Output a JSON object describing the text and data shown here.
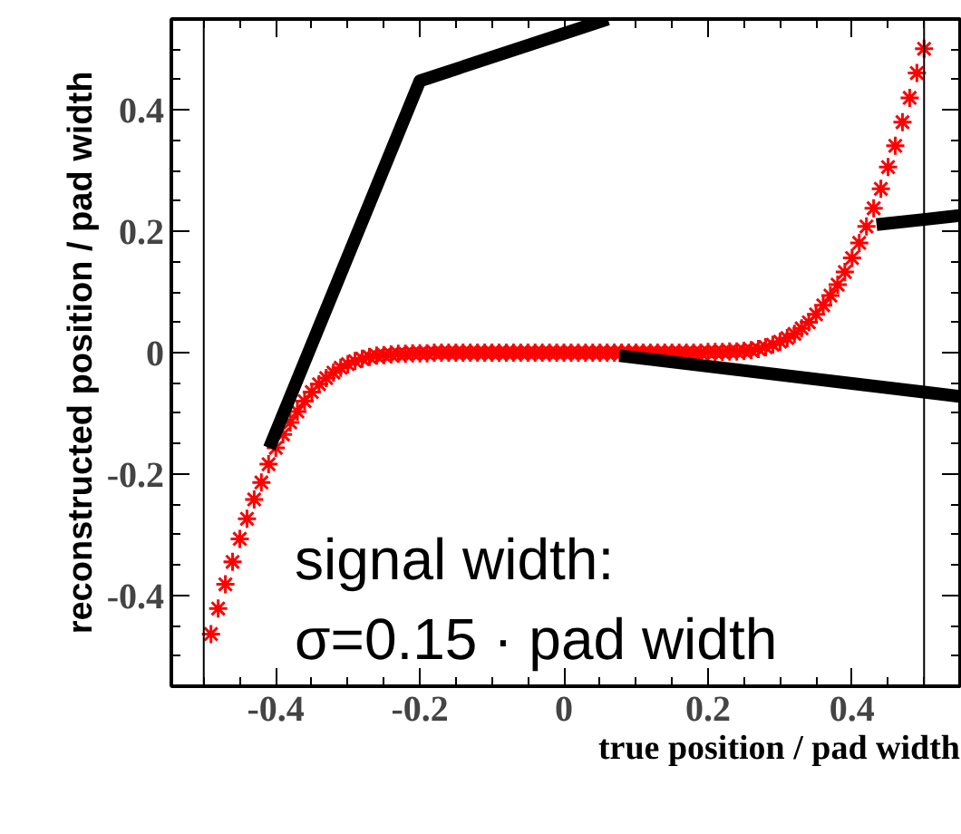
{
  "chart_data": {
    "type": "scatter",
    "xlabel": "true position / pad width",
    "ylabel": "reconstructed position / pad width",
    "xlim": [
      -0.545,
      0.55
    ],
    "ylim": [
      -0.55,
      0.55
    ],
    "xticks": [
      -0.4,
      -0.2,
      0,
      0.2,
      0.4
    ],
    "yticks": [
      -0.4,
      -0.2,
      0,
      0.2,
      0.4
    ],
    "grid": false,
    "marker": "cross",
    "series": [
      {
        "color": "#ff0000",
        "x": [
          -0.49,
          -0.48,
          -0.47,
          -0.46,
          -0.45,
          -0.44,
          -0.43,
          -0.42,
          -0.41,
          -0.4,
          -0.39,
          -0.38,
          -0.37,
          -0.36,
          -0.35,
          -0.34,
          -0.33,
          -0.32,
          -0.31,
          -0.3,
          -0.29,
          -0.28,
          -0.27,
          -0.26,
          -0.25,
          -0.24,
          -0.23,
          -0.22,
          -0.21,
          -0.2,
          -0.19,
          -0.18,
          -0.17,
          -0.16,
          -0.15,
          -0.14,
          -0.13,
          -0.12,
          -0.11,
          -0.1,
          -0.09,
          -0.08,
          -0.07,
          -0.06,
          -0.05,
          -0.04,
          -0.03,
          -0.02,
          -0.01,
          0,
          0.01,
          0.02,
          0.03,
          0.04,
          0.05,
          0.06,
          0.07,
          0.08,
          0.09,
          0.1,
          0.11,
          0.12,
          0.13,
          0.14,
          0.15,
          0.16,
          0.17,
          0.18,
          0.19,
          0.2,
          0.21,
          0.22,
          0.23,
          0.24,
          0.25,
          0.26,
          0.27,
          0.28,
          0.29,
          0.3,
          0.31,
          0.32,
          0.33,
          0.34,
          0.35,
          0.36,
          0.37,
          0.38,
          0.39,
          0.4,
          0.41,
          0.42,
          0.43,
          0.44,
          0.45,
          0.46,
          0.47,
          0.48,
          0.49,
          0.5
        ],
        "values": [
          -0.464,
          -0.422,
          -0.382,
          -0.345,
          -0.307,
          -0.274,
          -0.242,
          -0.214,
          -0.184,
          -0.157,
          -0.135,
          -0.115,
          -0.097,
          -0.08,
          -0.065,
          -0.052,
          -0.042,
          -0.033,
          -0.025,
          -0.019,
          -0.014,
          -0.01,
          -0.007,
          -0.005,
          -0.004,
          -0.003,
          -0.002,
          -0.002,
          -0.001,
          -0.001,
          -0.001,
          0,
          0,
          0,
          0,
          0,
          0,
          0,
          0,
          0,
          0,
          0,
          0,
          0,
          0,
          0,
          0,
          0,
          0,
          0,
          0,
          0,
          0,
          0,
          0,
          0,
          0,
          0,
          0,
          0,
          0,
          0,
          0,
          0,
          0,
          0,
          0,
          0,
          0,
          0.001,
          0.001,
          0.001,
          0.002,
          0.002,
          0.003,
          0.004,
          0.006,
          0.009,
          0.013,
          0.018,
          0.024,
          0.031,
          0.04,
          0.05,
          0.063,
          0.078,
          0.094,
          0.112,
          0.133,
          0.156,
          0.181,
          0.208,
          0.238,
          0.27,
          0.306,
          0.341,
          0.38,
          0.42,
          0.461,
          0.501
        ]
      },
      {
        "type": "line",
        "marker": "none",
        "color": "#000000",
        "x": [
          -0.409,
          -0.2,
          0.061
        ],
        "values": [
          -0.157,
          0.448,
          0.55
        ]
      },
      {
        "type": "line",
        "marker": "none",
        "color": "#000000",
        "x": [
          0.077,
          0.549
        ],
        "values": [
          -0.005,
          -0.072
        ]
      },
      {
        "type": "line",
        "marker": "none",
        "color": "#000000",
        "x": [
          0.434,
          0.549
        ],
        "values": [
          0.211,
          0.226
        ]
      }
    ],
    "ref_lines": [
      {
        "axis": "x",
        "value": -0.5,
        "color": "#000000"
      },
      {
        "axis": "x",
        "value": 0.5,
        "color": "#000000"
      }
    ],
    "annotations": [
      "signal width:",
      "σ=0.15 · pad width"
    ]
  }
}
